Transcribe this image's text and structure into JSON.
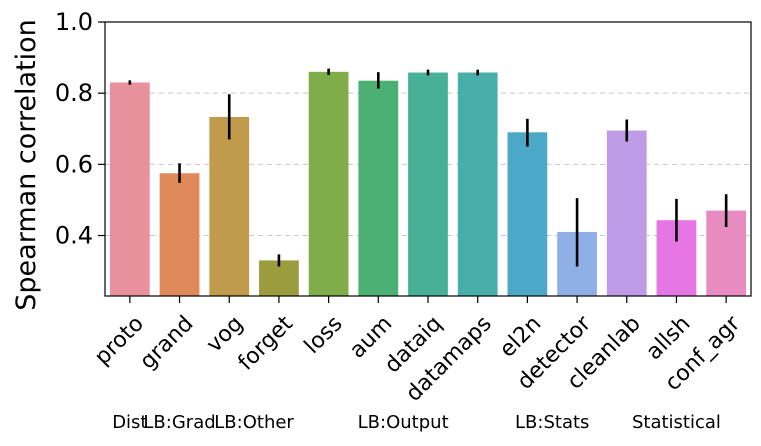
{
  "chart_data": {
    "type": "bar",
    "ylabel": "Spearman correlation",
    "xlabel": "",
    "title": "",
    "ylim": [
      0.23,
      1.0
    ],
    "yticks": [
      0.4,
      0.6,
      0.8,
      1.0
    ],
    "ytick_labels": [
      "0.4",
      "0.6",
      "0.8",
      "1.0"
    ],
    "grid": "horizontal dashed",
    "categories": [
      "proto",
      "grand",
      "vog",
      "forget",
      "loss",
      "aum",
      "dataiq",
      "datamaps",
      "el2n",
      "detector",
      "cleanlab",
      "allsh",
      "conf_agr"
    ],
    "values": [
      0.83,
      0.575,
      0.733,
      0.33,
      0.86,
      0.835,
      0.858,
      0.858,
      0.69,
      0.41,
      0.695,
      0.443,
      0.47
    ],
    "error_low": [
      0.824,
      0.548,
      0.67,
      0.313,
      0.851,
      0.813,
      0.85,
      0.85,
      0.65,
      0.313,
      0.664,
      0.383,
      0.424
    ],
    "error_high": [
      0.836,
      0.603,
      0.797,
      0.347,
      0.869,
      0.859,
      0.866,
      0.866,
      0.728,
      0.505,
      0.726,
      0.503,
      0.516
    ],
    "colors": [
      "#e8909b",
      "#e08a5c",
      "#c09b4c",
      "#9a9c3e",
      "#7fad4a",
      "#4bb172",
      "#46b196",
      "#48aeaa",
      "#4ba8c6",
      "#8fb0e6",
      "#bf9be6",
      "#e776e5",
      "#e88bc0"
    ],
    "groups": [
      {
        "label": "Dist",
        "span": [
          0,
          0
        ]
      },
      {
        "label": "LB:Grad",
        "span": [
          1,
          1
        ]
      },
      {
        "label": "LB:Other",
        "span": [
          2,
          3
        ]
      },
      {
        "label": "LB:Output",
        "span": [
          4,
          7
        ]
      },
      {
        "label": "LB:Stats",
        "span": [
          8,
          9
        ]
      },
      {
        "label": "Statistical",
        "span": [
          10,
          12
        ]
      }
    ]
  }
}
